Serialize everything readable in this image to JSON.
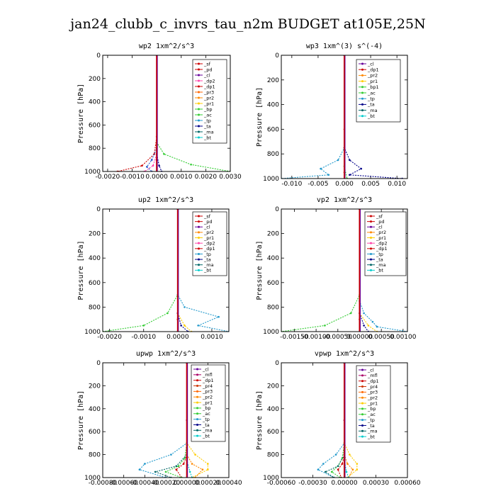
{
  "figure_title": "jan24_clubb_c_invrs_tau_n2m  BUDGET at105E,25N",
  "chart_data": [
    {
      "type": "line",
      "title": "wp2  1xm^2/s^3",
      "ylabel": "Pressure [hPa]",
      "xlim": [
        -0.0022,
        0.003
      ],
      "ylim": [
        1000,
        0
      ],
      "xticks": [
        "-0.0020",
        "-0.0010",
        "0.0000",
        "0.0010",
        "0.0020",
        "0.0030"
      ],
      "xtick_values": [
        -0.002,
        -0.001,
        0,
        0.001,
        0.002,
        0.003
      ],
      "yticks": [
        "0",
        "200",
        "400",
        "600",
        "800",
        "1000"
      ],
      "ytick_values": [
        0,
        200,
        400,
        600,
        800,
        1000
      ],
      "legend": [
        "_sf",
        "_pd",
        "_cl",
        "_dp2",
        "_dp1",
        "_pr3",
        "_pr2",
        "_pr1",
        "_bp",
        "_ac",
        "_tp",
        "_ta",
        "_ma",
        "_bt"
      ],
      "series": [
        {
          "name": "_dp1",
          "color": "#cc0000",
          "x": [
            0,
            0,
            -0.0001,
            -0.0006,
            -0.0016
          ],
          "y": [
            0,
            700,
            850,
            950,
            1000
          ]
        },
        {
          "name": "_pr1",
          "color": "#33cc33",
          "x": [
            0,
            0,
            0.0003,
            0.0014,
            0.003
          ],
          "y": [
            0,
            750,
            850,
            940,
            1000
          ]
        },
        {
          "name": "_tp",
          "color": "#2255cc",
          "x": [
            0,
            0,
            -0.0002,
            -0.0004,
            -0.0002
          ],
          "y": [
            0,
            800,
            900,
            960,
            1000
          ]
        },
        {
          "name": "_dp2",
          "color": "#ff44aa",
          "x": [
            0,
            0,
            -0.00015,
            -0.0005
          ],
          "y": [
            0,
            850,
            950,
            1000
          ]
        },
        {
          "name": "_ta",
          "color": "#000088",
          "x": [
            0,
            0,
            0.0001,
            0.0002
          ],
          "y": [
            0,
            850,
            950,
            1000
          ]
        },
        {
          "name": "_cl",
          "color": "#660066",
          "x": [
            0,
            0,
            0
          ],
          "y": [
            0,
            900,
            1000
          ]
        }
      ]
    },
    {
      "type": "line",
      "title": "wp3  1xm^(3) s^(-4)",
      "ylabel": "Pressure [hPa]",
      "xlim": [
        -0.012,
        0.012
      ],
      "ylim": [
        1000,
        0
      ],
      "xticks": [
        "-0.010",
        "-0.005",
        "0.000",
        "0.005",
        "0.010"
      ],
      "xtick_values": [
        -0.01,
        -0.005,
        0,
        0.005,
        0.01
      ],
      "yticks": [
        "0",
        "200",
        "400",
        "600",
        "800",
        "1000"
      ],
      "ytick_values": [
        0,
        200,
        400,
        600,
        800,
        1000
      ],
      "legend": [
        "_cl",
        "_dp1",
        "_pr2",
        "_pr1",
        "_bp1",
        "_ac",
        "_tp",
        "_ta",
        "_ma",
        "_bt"
      ],
      "series": [
        {
          "name": "_tp",
          "color": "#2299cc",
          "x": [
            0,
            0,
            -0.0012,
            -0.0045,
            -0.003,
            -0.012
          ],
          "y": [
            0,
            750,
            850,
            920,
            970,
            1000
          ]
        },
        {
          "name": "_ta",
          "color": "#000088",
          "x": [
            0,
            0,
            0.001,
            0.0032,
            0.001,
            0.011
          ],
          "y": [
            0,
            750,
            850,
            920,
            970,
            1000
          ]
        },
        {
          "name": "_dp1",
          "color": "#cc0000",
          "x": [
            0,
            0,
            0,
            0
          ],
          "y": [
            0,
            600,
            950,
            1000
          ]
        },
        {
          "name": "_ac",
          "color": "#33cc33",
          "x": [
            0,
            0,
            0.0005
          ],
          "y": [
            0,
            900,
            1000
          ]
        }
      ]
    },
    {
      "type": "line",
      "title": "up2  1xm^2/s^3",
      "ylabel": "Pressure [hPa]",
      "xlim": [
        -0.0022,
        0.0015
      ],
      "ylim": [
        1000,
        0
      ],
      "xticks": [
        "-0.0020",
        "-0.0010",
        "0.0000",
        "0.0010"
      ],
      "xtick_values": [
        -0.002,
        -0.001,
        0,
        0.001
      ],
      "yticks": [
        "0",
        "200",
        "400",
        "600",
        "800",
        "1000"
      ],
      "ytick_values": [
        0,
        200,
        400,
        600,
        800,
        1000
      ],
      "legend": [
        "_sf",
        "_pd",
        "_cl",
        "_pr2",
        "_pr1",
        "_dp2",
        "_dp1",
        "_tp",
        "_ta",
        "_ma",
        "_bt"
      ],
      "series": [
        {
          "name": "_dp1",
          "color": "#33cc33",
          "x": [
            0,
            0,
            -0.0003,
            -0.001,
            -0.0022
          ],
          "y": [
            0,
            700,
            850,
            950,
            1000
          ]
        },
        {
          "name": "_tp",
          "color": "#2299cc",
          "x": [
            0,
            0,
            0.0002,
            0.0012,
            0.0006,
            0.0015
          ],
          "y": [
            0,
            700,
            800,
            880,
            950,
            1000
          ]
        },
        {
          "name": "_pr1",
          "color": "#ffcc00",
          "x": [
            0,
            0,
            0.0002,
            0.0004
          ],
          "y": [
            0,
            850,
            950,
            1000
          ]
        },
        {
          "name": "_ta",
          "color": "#000088",
          "x": [
            0,
            0,
            0.0001,
            0.0003
          ],
          "y": [
            0,
            850,
            950,
            1000
          ]
        },
        {
          "name": "_pd",
          "color": "#cc0000",
          "x": [
            0,
            0,
            0
          ],
          "y": [
            0,
            900,
            1000
          ]
        }
      ]
    },
    {
      "type": "line",
      "title": "vp2  1xm^2/s^3",
      "ylabel": "Pressure [hPa]",
      "xlim": [
        -0.0018,
        0.0011
      ],
      "ylim": [
        1000,
        0
      ],
      "xticks": [
        "-0.00150",
        "-0.00100",
        "-0.00050",
        "0.00000",
        "0.00050",
        "0.00100"
      ],
      "xtick_values": [
        -0.0015,
        -0.001,
        -0.0005,
        0,
        0.0005,
        0.001
      ],
      "yticks": [
        "0",
        "200",
        "400",
        "600",
        "800",
        "1000"
      ],
      "ytick_values": [
        0,
        200,
        400,
        600,
        800,
        1000
      ],
      "legend": [
        "_sf",
        "_pd",
        "_cl",
        "_pr2",
        "_pr1",
        "_dp2",
        "_dp1",
        "_tp",
        "_ta",
        "_ma",
        "_bt"
      ],
      "series": [
        {
          "name": "_dp1",
          "color": "#33cc33",
          "x": [
            0,
            0,
            -0.0002,
            -0.0008,
            -0.0018
          ],
          "y": [
            0,
            700,
            850,
            950,
            1000
          ]
        },
        {
          "name": "_tp",
          "color": "#2299cc",
          "x": [
            0,
            0,
            0.0001,
            0.0003,
            0.0004,
            0.0011
          ],
          "y": [
            0,
            750,
            850,
            920,
            960,
            1000
          ]
        },
        {
          "name": "_pr1",
          "color": "#ffcc00",
          "x": [
            0,
            0,
            0.0002,
            0.0004
          ],
          "y": [
            0,
            850,
            950,
            1000
          ]
        },
        {
          "name": "_ta",
          "color": "#000088",
          "x": [
            0,
            0,
            0.0001,
            0.0002
          ],
          "y": [
            0,
            850,
            950,
            1000
          ]
        },
        {
          "name": "_pd",
          "color": "#cc0000",
          "x": [
            0,
            0,
            0
          ],
          "y": [
            0,
            900,
            1000
          ]
        }
      ]
    },
    {
      "type": "line",
      "title": "upwp  1xm^2/s^3",
      "ylabel": "Pressure [hPa]",
      "xlim": [
        -0.0008,
        0.0004
      ],
      "ylim": [
        1000,
        0
      ],
      "xticks": [
        "-0.00080",
        "-0.00060",
        "-0.00040",
        "-0.00020",
        "0.00000",
        "0.00020",
        "0.00040"
      ],
      "xtick_values": [
        -0.0008,
        -0.0006,
        -0.0004,
        -0.0002,
        0,
        0.0002,
        0.0004
      ],
      "yticks": [
        "0",
        "200",
        "400",
        "600",
        "800",
        "1000"
      ],
      "ytick_values": [
        0,
        200,
        400,
        600,
        800,
        1000
      ],
      "legend": [
        "_cl",
        "_mfl",
        "_dp1",
        "_pr4",
        "_pr3",
        "_pr2",
        "_pr1",
        "_bp",
        "_ac",
        "_tp",
        "_ta",
        "_ma",
        "_bt"
      ],
      "series": [
        {
          "name": "_tp",
          "color": "#2299cc",
          "x": [
            0,
            0,
            -0.00015,
            -0.0004,
            -0.00045,
            -0.0002
          ],
          "y": [
            0,
            700,
            800,
            880,
            930,
            1000
          ]
        },
        {
          "name": "_pr1",
          "color": "#ffcc00",
          "x": [
            0,
            0,
            8e-05,
            0.0002,
            0.0002,
            5e-05
          ],
          "y": [
            0,
            700,
            800,
            880,
            930,
            1000
          ]
        },
        {
          "name": "_pr2",
          "color": "#ff8800",
          "x": [
            0,
            0,
            5e-05,
            0.00015,
            8e-05
          ],
          "y": [
            0,
            800,
            880,
            930,
            1000
          ]
        },
        {
          "name": "_dp1",
          "color": "#cc0000",
          "x": [
            0,
            0,
            -3e-05,
            -0.0001,
            -5e-05
          ],
          "y": [
            0,
            800,
            880,
            930,
            1000
          ]
        },
        {
          "name": "_ac",
          "color": "#33cc33",
          "x": [
            0,
            0,
            -2e-05,
            -8e-05,
            -0.0002,
            -5e-05
          ],
          "y": [
            0,
            700,
            830,
            900,
            950,
            1000
          ]
        },
        {
          "name": "_ma",
          "color": "#006666",
          "x": [
            0,
            0,
            -0.0001,
            -0.0003,
            -0.00015
          ],
          "y": [
            0,
            800,
            900,
            950,
            1000
          ]
        },
        {
          "name": "_bt",
          "color": "#00cccc",
          "x": [
            0,
            0,
            3e-05,
            5e-05
          ],
          "y": [
            0,
            850,
            950,
            1000
          ]
        },
        {
          "name": "_mfl",
          "color": "#aa0066",
          "x": [
            0,
            0,
            0
          ],
          "y": [
            0,
            500,
            1000
          ]
        },
        {
          "name": "_cl",
          "color": "#660099",
          "x": [
            0,
            0,
            0
          ],
          "y": [
            0,
            500,
            1000
          ]
        }
      ]
    },
    {
      "type": "line",
      "title": "vpwp  1xm^2/s^3",
      "ylabel": "Pressure [hPa]",
      "xlim": [
        -0.0006,
        0.0006
      ],
      "ylim": [
        1000,
        0
      ],
      "xticks": [
        "-0.00060",
        "-0.00030",
        "0.00000",
        "0.00030",
        "0.00060"
      ],
      "xtick_values": [
        -0.0006,
        -0.0003,
        0,
        0.0003,
        0.0006
      ],
      "yticks": [
        "0",
        "200",
        "400",
        "600",
        "800",
        "1000"
      ],
      "ytick_values": [
        0,
        200,
        400,
        600,
        800,
        1000
      ],
      "legend": [
        "_cl",
        "_mfl",
        "_dp1",
        "_pr4",
        "_pr3",
        "_pr2",
        "_pr1",
        "_bp",
        "_ac",
        "_tp",
        "_ta",
        "_ma",
        "_bt"
      ],
      "series": [
        {
          "name": "_tp",
          "color": "#2299cc",
          "x": [
            0,
            0,
            -8e-05,
            -0.0002,
            -0.00025,
            -0.0001
          ],
          "y": [
            0,
            700,
            800,
            880,
            930,
            1000
          ]
        },
        {
          "name": "_pr1",
          "color": "#ffcc00",
          "x": [
            0,
            0,
            5e-05,
            0.00012,
            0.00012,
            3e-05
          ],
          "y": [
            0,
            700,
            800,
            880,
            930,
            1000
          ]
        },
        {
          "name": "_pr2",
          "color": "#ff8800",
          "x": [
            0,
            0,
            3e-05,
            8e-05,
            4e-05
          ],
          "y": [
            0,
            800,
            880,
            930,
            1000
          ]
        },
        {
          "name": "_dp1",
          "color": "#cc0000",
          "x": [
            0,
            0,
            -2e-05,
            -6e-05,
            -3e-05
          ],
          "y": [
            0,
            800,
            880,
            930,
            1000
          ]
        },
        {
          "name": "_ac",
          "color": "#33cc33",
          "x": [
            0,
            0,
            -2e-05,
            -6e-05,
            -0.00012,
            -4e-05
          ],
          "y": [
            0,
            700,
            830,
            900,
            950,
            1000
          ]
        },
        {
          "name": "_ma",
          "color": "#006666",
          "x": [
            0,
            0,
            -6e-05,
            -0.00018,
            -0.0001
          ],
          "y": [
            0,
            800,
            900,
            950,
            1000
          ]
        },
        {
          "name": "_bt",
          "color": "#00cccc",
          "x": [
            0,
            0,
            2e-05,
            4e-05
          ],
          "y": [
            0,
            850,
            950,
            1000
          ]
        },
        {
          "name": "_mfl",
          "color": "#aa0066",
          "x": [
            0,
            0,
            0
          ],
          "y": [
            0,
            500,
            1000
          ]
        },
        {
          "name": "_cl",
          "color": "#660099",
          "x": [
            0,
            0,
            0
          ],
          "y": [
            0,
            500,
            1000
          ]
        }
      ]
    }
  ]
}
